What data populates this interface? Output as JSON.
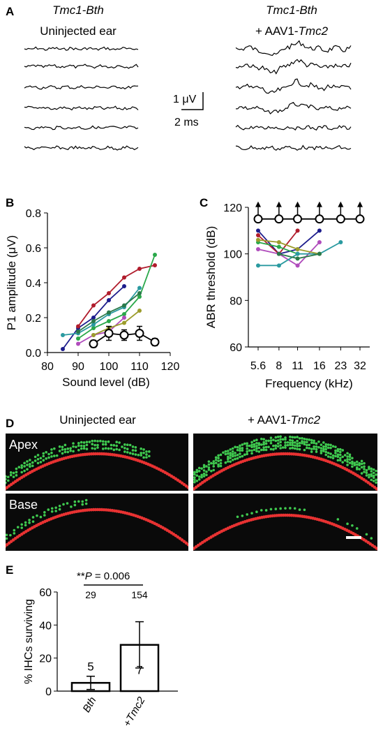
{
  "panels": {
    "A": {
      "letter": "A",
      "left_title_1": "Tmc1-Bth",
      "left_title_2": "Uninjected ear",
      "right_title_1": "Tmc1-Bth",
      "right_title_2_prefix": "+ AAV1-",
      "right_title_2_italic": "Tmc2",
      "scale_voltage": "1 μV",
      "scale_time": "2 ms"
    },
    "B": {
      "letter": "B"
    },
    "C": {
      "letter": "C"
    },
    "D": {
      "letter": "D",
      "left_title": "Uninjected ear",
      "right_title_prefix": "+ AAV1-",
      "right_title_italic": "Tmc2",
      "row_labels": [
        "Apex",
        "Base"
      ]
    },
    "E": {
      "letter": "E",
      "significance_stars": "**",
      "significance_p": "P",
      "significance_value": " = 0.006"
    }
  },
  "colors": {
    "series": [
      "#1c1c8c",
      "#b01c2c",
      "#2aa84a",
      "#b04cbc",
      "#2a9aa0",
      "#9c9c2c",
      "#2a7a4a"
    ],
    "control": "#000000",
    "hair_cells_outer": "#3fc94f",
    "hair_cells_inner": "#e83232",
    "tissue_bg": "#0a0a0a"
  },
  "chart_data": [
    {
      "id": "B",
      "type": "line",
      "xlabel": "Sound level (dB)",
      "ylabel": "P1 amplitude (μV)",
      "xlim": [
        80,
        120
      ],
      "ylim": [
        0.0,
        0.8
      ],
      "xticks": [
        80,
        90,
        100,
        110,
        120
      ],
      "yticks": [
        0.0,
        0.2,
        0.4,
        0.6,
        0.8
      ],
      "xtick_labels": [
        "80",
        "90",
        "100",
        "110",
        "120"
      ],
      "ytick_labels": [
        "0.0",
        "0.2",
        "0.4",
        "0.6",
        "0.8"
      ],
      "grid": false,
      "series": [
        {
          "x": [
            85,
            90,
            95,
            100,
            105
          ],
          "y": [
            0.02,
            0.14,
            0.2,
            0.3,
            0.38
          ]
        },
        {
          "x": [
            90,
            95,
            100,
            105,
            110,
            115
          ],
          "y": [
            0.15,
            0.27,
            0.34,
            0.43,
            0.48,
            0.5
          ]
        },
        {
          "x": [
            90,
            95,
            100,
            105,
            110,
            115
          ],
          "y": [
            0.08,
            0.14,
            0.18,
            0.22,
            0.32,
            0.56
          ]
        },
        {
          "x": [
            90,
            95,
            100,
            105
          ],
          "y": [
            0.05,
            0.1,
            0.12,
            0.2
          ]
        },
        {
          "x": [
            85,
            90,
            95,
            100,
            105,
            110
          ],
          "y": [
            0.1,
            0.11,
            0.16,
            0.22,
            0.26,
            0.37
          ]
        },
        {
          "x": [
            95,
            100,
            105,
            110
          ],
          "y": [
            0.1,
            0.14,
            0.17,
            0.24
          ]
        },
        {
          "x": [
            90,
            95,
            100,
            105,
            110
          ],
          "y": [
            0.12,
            0.18,
            0.23,
            0.27,
            0.34
          ]
        }
      ],
      "control": {
        "x": [
          95,
          100,
          105,
          110,
          115
        ],
        "y": [
          0.05,
          0.11,
          0.1,
          0.11,
          0.06
        ],
        "err": [
          0.02,
          0.04,
          0.03,
          0.04,
          0.02
        ]
      }
    },
    {
      "id": "C",
      "type": "line",
      "xlabel": "Frequency (kHz)",
      "ylabel": "ABR threshold (dB)",
      "xscale": "log",
      "xlim": [
        5.6,
        32
      ],
      "ylim": [
        60,
        120
      ],
      "xticks": [
        5.6,
        8,
        11,
        16,
        23,
        32
      ],
      "yticks": [
        60,
        80,
        100,
        120
      ],
      "xtick_labels": [
        "5.6",
        "8",
        "11",
        "16",
        "23",
        "32"
      ],
      "ytick_labels": [
        "60",
        "80",
        "100",
        "120"
      ],
      "grid": false,
      "series": [
        {
          "x": [
            5.6,
            8,
            11,
            16
          ],
          "y": [
            110,
            100,
            102,
            110
          ]
        },
        {
          "x": [
            5.6,
            8,
            11
          ],
          "y": [
            108,
            100,
            110
          ]
        },
        {
          "x": [
            5.6,
            8,
            11
          ],
          "y": [
            105,
            103,
            100
          ]
        },
        {
          "x": [
            5.6,
            8,
            11,
            16
          ],
          "y": [
            102,
            100,
            95,
            105
          ]
        },
        {
          "x": [
            5.6,
            8,
            11,
            16,
            23
          ],
          "y": [
            95,
            95,
            100,
            100,
            105
          ]
        },
        {
          "x": [
            5.6,
            8,
            11,
            16
          ],
          "y": [
            106,
            105,
            102,
            100
          ]
        },
        {
          "x": [
            8,
            11,
            16
          ],
          "y": [
            100,
            98,
            100
          ]
        }
      ],
      "control": {
        "x": [
          5.6,
          8,
          11,
          16,
          23,
          32
        ],
        "y": [
          115,
          115,
          115,
          115,
          115,
          115
        ]
      }
    },
    {
      "id": "E",
      "type": "bar",
      "ylabel": "% IHCs surviving",
      "categories": [
        "Bth",
        "+Tmc2"
      ],
      "values": [
        5,
        28
      ],
      "err_low": [
        4,
        14
      ],
      "err_high": [
        4,
        14
      ],
      "n_inside": [
        "5",
        "7"
      ],
      "n_above": [
        "29",
        "154"
      ],
      "ylim": [
        0,
        60
      ],
      "yticks": [
        0,
        20,
        40,
        60
      ],
      "ytick_labels": [
        "0",
        "20",
        "40",
        "60"
      ]
    }
  ]
}
